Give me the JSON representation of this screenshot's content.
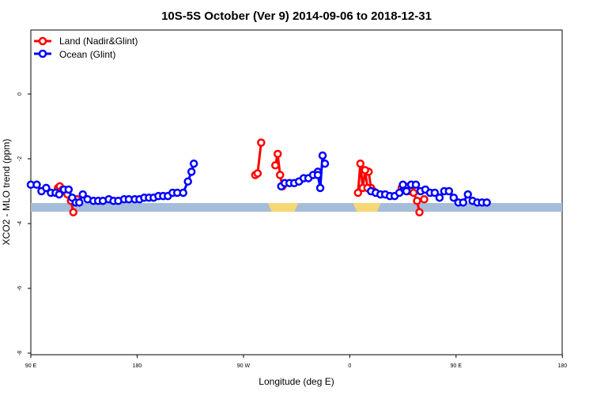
{
  "chart_data": {
    "type": "line",
    "title": "10S-5S October (Ver 9)   2014-09-06 to 2018-12-31",
    "xlabel": "Longitude (deg E)",
    "ylabel": "XCO2 - MLO trend (ppm)",
    "xlim": [
      90,
      450
    ],
    "ylim": [
      -8,
      2
    ],
    "x_ticks": [
      {
        "value": 90,
        "label": "90 E"
      },
      {
        "value": 180,
        "label": "180"
      },
      {
        "value": 270,
        "label": "90 W"
      },
      {
        "value": 360,
        "label": "0"
      },
      {
        "value": 450,
        "label": "90 E"
      },
      {
        "value": 540,
        "label": "180"
      }
    ],
    "y_ticks": [
      {
        "value": 0,
        "label": "0"
      },
      {
        "value": -2,
        "label": "-2"
      },
      {
        "value": -4,
        "label": "-4"
      },
      {
        "value": -6,
        "label": "-6"
      },
      {
        "value": -8,
        "label": "-8"
      }
    ],
    "grid": false,
    "legend_position": "top-left",
    "series": [
      {
        "name": "Land (Nadir&Glint)",
        "color": "#ff0000",
        "segments": [
          [
            [
              113,
              -2.9
            ],
            [
              114.5,
              -2.85
            ],
            [
              117,
              -2.95
            ],
            [
              119,
              -3.0
            ],
            [
              121,
              -3.1
            ],
            [
              124,
              -3.3
            ],
            [
              126,
              -3.65
            ]
          ],
          [
            [
              129,
              -3.25
            ]
          ],
          [
            [
              297,
              -2.2
            ],
            [
              299,
              -1.85
            ],
            [
              301,
              -2.5
            ],
            [
              303,
              -2.85
            ]
          ],
          [
            [
              280,
              -2.5
            ],
            [
              282,
              -2.45
            ],
            [
              285,
              -1.5
            ]
          ],
          [
            [
              376,
              -2.4
            ],
            [
              378,
              -2.9
            ],
            [
              380,
              -3.0
            ]
          ],
          [
            [
              367,
              -3.05
            ],
            [
              369,
              -2.15
            ],
            [
              371,
              -2.9
            ],
            [
              373,
              -2.35
            ],
            [
              375,
              -2.9
            ]
          ],
          [
            [
              404,
              -2.9
            ],
            [
              407,
              -2.85
            ],
            [
              409,
              -3.0
            ],
            [
              412,
              -3.0
            ],
            [
              414,
              -3.05
            ],
            [
              417,
              -3.3
            ],
            [
              419,
              -3.65
            ]
          ],
          [
            [
              423,
              -3.25
            ]
          ]
        ]
      },
      {
        "name": "Ocean (Glint)",
        "color": "#0000ff",
        "segments": [
          [
            [
              90,
              -2.8
            ],
            [
              95,
              -2.8
            ],
            [
              99,
              -3.0
            ],
            [
              103,
              -2.9
            ],
            [
              107,
              -3.05
            ],
            [
              111,
              -3.05
            ],
            [
              114,
              -3.1
            ],
            [
              118,
              -2.95
            ],
            [
              122,
              -2.95
            ],
            [
              125,
              -3.2
            ],
            [
              128,
              -3.35
            ],
            [
              131,
              -3.35
            ],
            [
              134,
              -3.1
            ],
            [
              138,
              -3.25
            ],
            [
              143,
              -3.3
            ],
            [
              147,
              -3.3
            ],
            [
              151,
              -3.3
            ],
            [
              156,
              -3.25
            ],
            [
              160,
              -3.3
            ],
            [
              164,
              -3.3
            ],
            [
              169,
              -3.25
            ],
            [
              173,
              -3.25
            ],
            [
              178,
              -3.25
            ],
            [
              182,
              -3.25
            ],
            [
              186,
              -3.2
            ],
            [
              190,
              -3.2
            ],
            [
              194,
              -3.2
            ],
            [
              198,
              -3.15
            ],
            [
              202,
              -3.15
            ],
            [
              206,
              -3.15
            ],
            [
              210,
              -3.05
            ],
            [
              214,
              -3.05
            ],
            [
              219,
              -3.05
            ],
            [
              223,
              -2.7
            ],
            [
              226,
              -2.4
            ],
            [
              228,
              -2.15
            ]
          ],
          [
            [
              302,
              -2.85
            ],
            [
              305,
              -2.75
            ],
            [
              309,
              -2.75
            ],
            [
              313,
              -2.75
            ],
            [
              317,
              -2.7
            ],
            [
              321,
              -2.6
            ],
            [
              325,
              -2.6
            ],
            [
              329,
              -2.5
            ],
            [
              333,
              -2.4
            ]
          ],
          [
            [
              333,
              -2.5
            ],
            [
              335,
              -2.9
            ],
            [
              337,
              -1.9
            ],
            [
              339,
              -2.15
            ]
          ],
          [
            [
              378,
              -3.0
            ],
            [
              382,
              -3.05
            ],
            [
              386,
              -3.1
            ],
            [
              390,
              -3.1
            ],
            [
              394,
              -3.15
            ],
            [
              398,
              -3.15
            ],
            [
              402,
              -3.05
            ],
            [
              405,
              -2.8
            ],
            [
              408,
              -3.0
            ],
            [
              412,
              -2.8
            ],
            [
              416,
              -2.8
            ],
            [
              420,
              -3.0
            ],
            [
              424,
              -2.95
            ],
            [
              428,
              -3.05
            ],
            [
              432,
              -3.05
            ],
            [
              436,
              -3.2
            ],
            [
              440,
              -3.0
            ],
            [
              444,
              -3.0
            ],
            [
              448,
              -3.2
            ],
            [
              452,
              -3.35
            ],
            [
              456,
              -3.35
            ],
            [
              460,
              -3.1
            ],
            [
              464,
              -3.3
            ],
            [
              468,
              -3.35
            ],
            [
              472,
              -3.35
            ],
            [
              476,
              -3.35
            ]
          ]
        ]
      }
    ],
    "land_strip": [
      {
        "from": 296,
        "to": 311,
        "color": "#f5d776"
      },
      {
        "from": 368,
        "to": 381,
        "color": "#f5d776"
      }
    ],
    "ocean_strip_color": "#a6bdd9"
  }
}
